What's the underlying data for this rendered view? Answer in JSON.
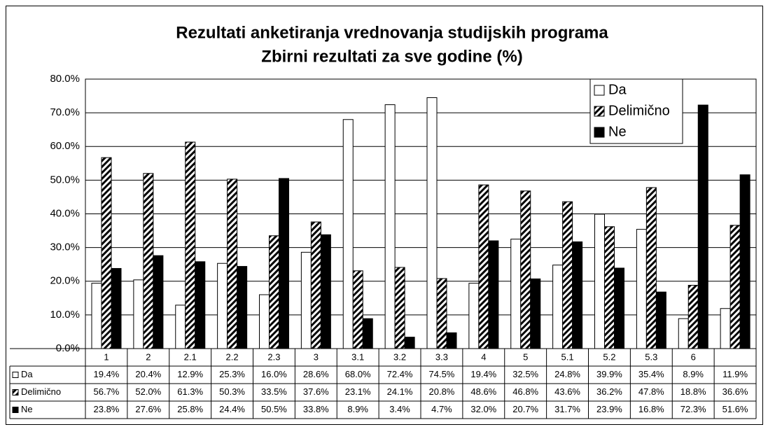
{
  "chart_data": {
    "type": "bar",
    "title": "Rezultati anketiranja vrednovanja studijskih programa",
    "subtitle": "Zbirni rezultati za sve godine (%)",
    "categories": [
      "1",
      "2",
      "2.1",
      "2.2",
      "2.3",
      "3",
      "3.1",
      "3.2",
      "3.3",
      "4",
      "5",
      "5.1",
      "5.2",
      "5.3",
      "6",
      null
    ],
    "series": [
      {
        "name": "Da",
        "color": "#ffffff",
        "values": [
          19.4,
          20.4,
          12.9,
          25.3,
          16.0,
          28.6,
          68.0,
          72.4,
          74.5,
          19.4,
          32.5,
          24.8,
          39.9,
          35.4,
          8.9,
          11.9
        ],
        "value_labels": [
          "19.4%",
          "20.4%",
          "12.9%",
          "25.3%",
          "16.0%",
          "28.6%",
          "68.0%",
          "72.4%",
          "74.5%",
          "19.4%",
          "32.5%",
          "24.8%",
          "39.9%",
          "35.4%",
          "8.9%",
          "11.9%"
        ]
      },
      {
        "name": "Delimično",
        "color": "#000000",
        "pattern": "hatch",
        "values": [
          56.7,
          52.0,
          61.3,
          50.3,
          33.5,
          37.6,
          23.1,
          24.1,
          20.8,
          48.6,
          46.8,
          43.6,
          36.2,
          47.8,
          18.8,
          36.6
        ],
        "value_labels": [
          "56.7%",
          "52.0%",
          "61.3%",
          "50.3%",
          "33.5%",
          "37.6%",
          "23.1%",
          "24.1%",
          "20.8%",
          "48.6%",
          "46.8%",
          "43.6%",
          "36.2%",
          "47.8%",
          "18.8%",
          "36.6%"
        ]
      },
      {
        "name": "Ne",
        "color": "#000000",
        "values": [
          23.8,
          27.6,
          25.8,
          24.4,
          50.5,
          33.8,
          8.9,
          3.4,
          4.7,
          32.0,
          20.7,
          31.7,
          23.9,
          16.8,
          72.3,
          51.6
        ],
        "value_labels": [
          "23.8%",
          "27.6%",
          "25.8%",
          "24.4%",
          "50.5%",
          "33.8%",
          "8.9%",
          "3.4%",
          "4.7%",
          "32.0%",
          "20.7%",
          "31.7%",
          "23.9%",
          "16.8%",
          "72.3%",
          "51.6%"
        ]
      }
    ],
    "ylim": [
      0,
      80
    ],
    "yticks": [
      {
        "value": 0,
        "label": "0.0%"
      },
      {
        "value": 10,
        "label": "10.0%"
      },
      {
        "value": 20,
        "label": "20.0%"
      },
      {
        "value": 30,
        "label": "30.0%"
      },
      {
        "value": 40,
        "label": "40.0%"
      },
      {
        "value": 50,
        "label": "50.0%"
      },
      {
        "value": 60,
        "label": "60.0%"
      },
      {
        "value": 70,
        "label": "70.0%"
      },
      {
        "value": 80,
        "label": "80.0%"
      }
    ],
    "grid": true,
    "legend": "upper right"
  }
}
